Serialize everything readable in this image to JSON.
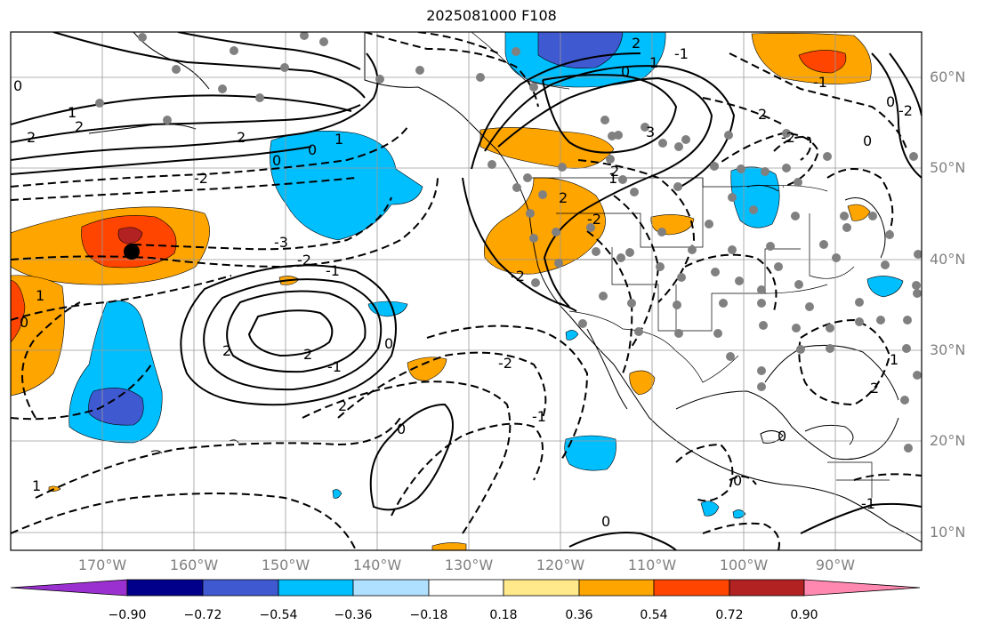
{
  "title": "2025081000 F108",
  "map": {
    "projection": "plate carree",
    "extent_lon": [
      -180,
      -80
    ],
    "extent_lat": [
      8,
      65
    ],
    "grid": true,
    "lat_labels": [
      "60°N",
      "50°N",
      "40°N",
      "30°N",
      "20°N",
      "10°N"
    ],
    "lon_labels": [
      "170°W",
      "160°W",
      "150°W",
      "140°W",
      "130°W",
      "120°W",
      "110°W",
      "100°W",
      "90°W"
    ],
    "contour_labels": [
      "0",
      "1",
      "2",
      "2",
      "2",
      "0",
      "1",
      "-3",
      "-2",
      "-1",
      "0",
      "-2",
      "1",
      "2",
      "-1",
      "2",
      "2",
      "-1",
      "0",
      "0",
      "-2",
      "1",
      "0",
      "0",
      "-2",
      "-2",
      "1",
      "0",
      "2",
      "-1",
      "2",
      "1",
      "2",
      "3",
      "2",
      "-2",
      "0",
      "0",
      "-2",
      "-1",
      "0",
      "1",
      "-1",
      "2",
      "0"
    ],
    "marker": {
      "type": "black-dot",
      "lon": -166.5,
      "lat": 41
    }
  },
  "colorbar": {
    "tick_labels": [
      "−0.90",
      "−0.72",
      "−0.54",
      "−0.36",
      "−0.18",
      "0.18",
      "0.36",
      "0.54",
      "0.72",
      "0.90"
    ],
    "colors": [
      "#9b30d0",
      "#00008b",
      "#3f59d1",
      "#00bfff",
      "#b0e0ff",
      "#ffffff",
      "#ffe98a",
      "#ffa500",
      "#ff4500",
      "#b22222",
      "#ff88b0"
    ]
  }
}
